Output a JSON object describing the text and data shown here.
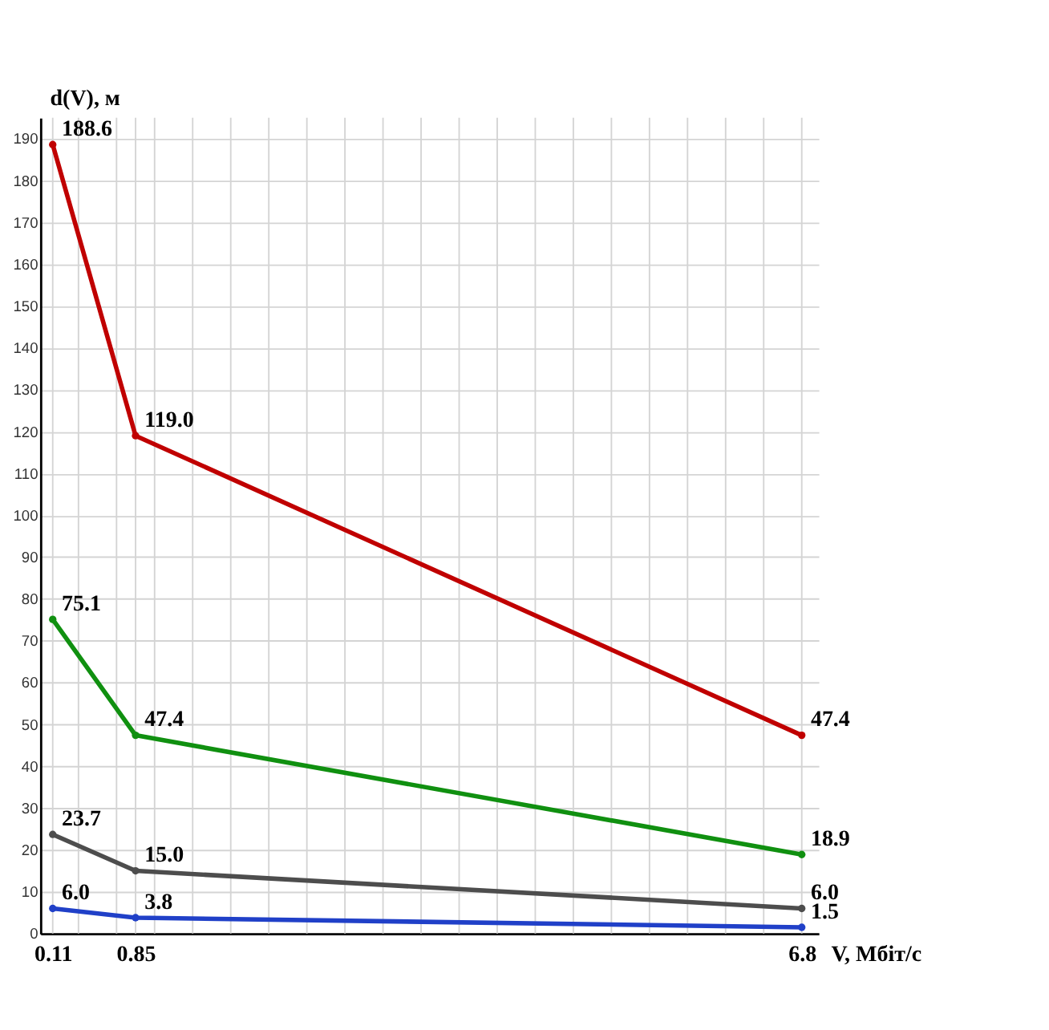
{
  "chart_data": {
    "type": "line",
    "xlabel": "V, Мбіт/с",
    "ylabel": "d(V), м",
    "x": [
      0.11,
      0.85,
      6.8
    ],
    "series": [
      {
        "color": "#c00000",
        "values": [
          188.6,
          119.0,
          47.4
        ]
      },
      {
        "color": "#109010",
        "values": [
          75.1,
          47.4,
          18.9
        ]
      },
      {
        "color": "#4d4d4d",
        "values": [
          23.7,
          15.0,
          6.0
        ]
      },
      {
        "color": "#2040c8",
        "values": [
          6.0,
          3.8,
          1.5
        ]
      }
    ],
    "value_labels": [
      [
        "188.6",
        "119.0",
        "47.4"
      ],
      [
        "75.1",
        "47.4",
        "18.9"
      ],
      [
        "23.7",
        "15.0",
        "6.0"
      ],
      [
        "6.0",
        "3.8",
        "1.5"
      ]
    ],
    "xlim": [
      0,
      6.95
    ],
    "xticks": [
      {
        "value": 0.11,
        "label": "0.11"
      },
      {
        "value": 0.34,
        "label": null
      },
      {
        "value": 0.68,
        "label": null
      },
      {
        "value": 0.85,
        "label": "0.85"
      },
      {
        "value": 1.02,
        "label": null
      },
      {
        "value": 1.36,
        "label": null
      },
      {
        "value": 1.7,
        "label": null
      },
      {
        "value": 2.04,
        "label": null
      },
      {
        "value": 2.38,
        "label": null
      },
      {
        "value": 2.72,
        "label": null
      },
      {
        "value": 3.06,
        "label": null
      },
      {
        "value": 3.4,
        "label": null
      },
      {
        "value": 3.74,
        "label": null
      },
      {
        "value": 4.08,
        "label": null
      },
      {
        "value": 4.42,
        "label": null
      },
      {
        "value": 4.76,
        "label": null
      },
      {
        "value": 5.1,
        "label": null
      },
      {
        "value": 5.44,
        "label": null
      },
      {
        "value": 5.78,
        "label": null
      },
      {
        "value": 6.12,
        "label": null
      },
      {
        "value": 6.46,
        "label": null
      },
      {
        "value": 6.8,
        "label": "6.8"
      }
    ],
    "ylim": [
      0,
      195
    ],
    "yticks": [
      0,
      10,
      20,
      30,
      40,
      50,
      60,
      70,
      80,
      90,
      100,
      110,
      120,
      130,
      140,
      150,
      160,
      170,
      180,
      190
    ],
    "grid": true,
    "marker": "circle",
    "line_style": "solid",
    "legend": false
  }
}
